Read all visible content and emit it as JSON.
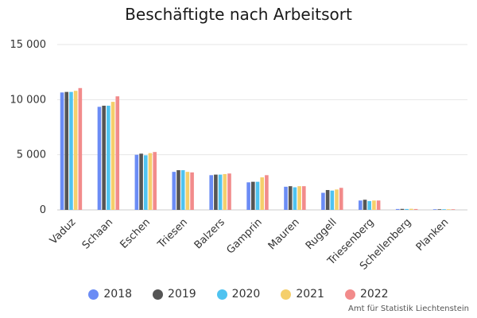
{
  "chart_data": {
    "type": "bar",
    "title": "Beschäftigte nach Arbeitsort",
    "xlabel": "",
    "ylabel": "",
    "ylim": [
      0,
      15000
    ],
    "yticks": [
      0,
      5000,
      10000,
      15000
    ],
    "ytick_labels": [
      "0",
      "5 000",
      "10 000",
      "15 000"
    ],
    "grid": true,
    "legend_position": "bottom",
    "categories": [
      "Vaduz",
      "Schaan",
      "Eschen",
      "Triesen",
      "Balzers",
      "Gamprin",
      "Mauren",
      "Ruggell",
      "Triesenberg",
      "Schellenberg",
      "Planken"
    ],
    "series": [
      {
        "name": "2018",
        "color": "#6b8cf5",
        "values": [
          10650,
          9350,
          5000,
          3450,
          3150,
          2500,
          2100,
          1550,
          850,
          80,
          30
        ]
      },
      {
        "name": "2019",
        "color": "#555555",
        "values": [
          10700,
          9450,
          5100,
          3600,
          3200,
          2550,
          2150,
          1800,
          920,
          90,
          30
        ]
      },
      {
        "name": "2020",
        "color": "#4fc3f0",
        "values": [
          10700,
          9450,
          4950,
          3600,
          3200,
          2550,
          2050,
          1750,
          800,
          80,
          30
        ]
      },
      {
        "name": "2021",
        "color": "#f5cf6b",
        "values": [
          10800,
          9800,
          5150,
          3450,
          3250,
          2950,
          2150,
          1850,
          850,
          100,
          30
        ]
      },
      {
        "name": "2022",
        "color": "#f28b8b",
        "values": [
          11050,
          10300,
          5250,
          3400,
          3300,
          3150,
          2150,
          2000,
          850,
          80,
          30
        ]
      }
    ]
  },
  "credit": "Amt für Statistik Liechtenstein"
}
